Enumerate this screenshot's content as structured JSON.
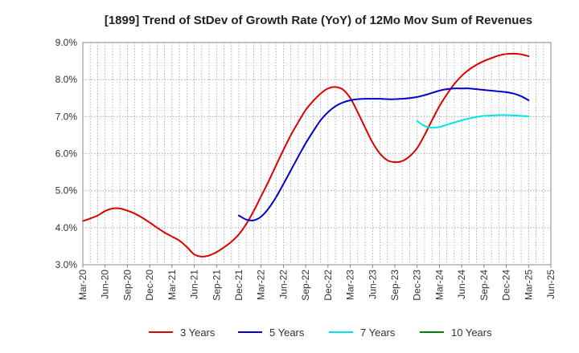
{
  "chart_data": {
    "type": "line",
    "title": "[1899]  Trend of StDev of Growth Rate (YoY) of 12Mo Mov Sum of Revenues",
    "xlabel": "",
    "ylabel": "",
    "ylim": [
      3.0,
      9.0
    ],
    "yticks": [
      3.0,
      4.0,
      5.0,
      6.0,
      7.0,
      8.0,
      9.0
    ],
    "ytick_labels": [
      "3.0%",
      "4.0%",
      "5.0%",
      "6.0%",
      "7.0%",
      "8.0%",
      "9.0%"
    ],
    "x_range_months": [
      0,
      63
    ],
    "x_ticks": [
      {
        "m": 0,
        "label": "Mar-20"
      },
      {
        "m": 3,
        "label": "Jun-20"
      },
      {
        "m": 6,
        "label": "Sep-20"
      },
      {
        "m": 9,
        "label": "Dec-20"
      },
      {
        "m": 12,
        "label": "Mar-21"
      },
      {
        "m": 15,
        "label": "Jun-21"
      },
      {
        "m": 18,
        "label": "Sep-21"
      },
      {
        "m": 21,
        "label": "Dec-21"
      },
      {
        "m": 24,
        "label": "Mar-22"
      },
      {
        "m": 27,
        "label": "Jun-22"
      },
      {
        "m": 30,
        "label": "Sep-22"
      },
      {
        "m": 33,
        "label": "Dec-22"
      },
      {
        "m": 36,
        "label": "Mar-23"
      },
      {
        "m": 39,
        "label": "Jun-23"
      },
      {
        "m": 42,
        "label": "Sep-23"
      },
      {
        "m": 45,
        "label": "Dec-23"
      },
      {
        "m": 48,
        "label": "Mar-24"
      },
      {
        "m": 51,
        "label": "Jun-24"
      },
      {
        "m": 54,
        "label": "Sep-24"
      },
      {
        "m": 57,
        "label": "Dec-24"
      },
      {
        "m": 60,
        "label": "Mar-25"
      },
      {
        "m": 63,
        "label": "Jun-25"
      }
    ],
    "grid": true,
    "legend_position": "bottom",
    "series": [
      {
        "name": "3 Years",
        "color": "#dd0000",
        "points": [
          [
            0,
            4.18
          ],
          [
            1,
            4.25
          ],
          [
            2,
            4.33
          ],
          [
            3,
            4.45
          ],
          [
            4,
            4.52
          ],
          [
            5,
            4.52
          ],
          [
            6,
            4.46
          ],
          [
            7,
            4.38
          ],
          [
            8,
            4.27
          ],
          [
            9,
            4.14
          ],
          [
            10,
            4.0
          ],
          [
            11,
            3.87
          ],
          [
            12,
            3.76
          ],
          [
            13,
            3.65
          ],
          [
            14,
            3.48
          ],
          [
            15,
            3.28
          ],
          [
            16,
            3.22
          ],
          [
            17,
            3.25
          ],
          [
            18,
            3.34
          ],
          [
            19,
            3.47
          ],
          [
            20,
            3.62
          ],
          [
            21,
            3.82
          ],
          [
            22,
            4.1
          ],
          [
            23,
            4.45
          ],
          [
            24,
            4.85
          ],
          [
            25,
            5.25
          ],
          [
            26,
            5.68
          ],
          [
            27,
            6.1
          ],
          [
            28,
            6.5
          ],
          [
            29,
            6.85
          ],
          [
            30,
            7.18
          ],
          [
            31,
            7.42
          ],
          [
            32,
            7.62
          ],
          [
            33,
            7.76
          ],
          [
            34,
            7.8
          ],
          [
            35,
            7.73
          ],
          [
            36,
            7.5
          ],
          [
            37,
            7.12
          ],
          [
            38,
            6.7
          ],
          [
            39,
            6.3
          ],
          [
            40,
            6.0
          ],
          [
            41,
            5.82
          ],
          [
            42,
            5.77
          ],
          [
            43,
            5.8
          ],
          [
            44,
            5.93
          ],
          [
            45,
            6.15
          ],
          [
            46,
            6.5
          ],
          [
            47,
            6.9
          ],
          [
            48,
            7.28
          ],
          [
            49,
            7.6
          ],
          [
            50,
            7.88
          ],
          [
            51,
            8.1
          ],
          [
            52,
            8.27
          ],
          [
            53,
            8.4
          ],
          [
            54,
            8.5
          ],
          [
            55,
            8.58
          ],
          [
            56,
            8.65
          ],
          [
            57,
            8.69
          ],
          [
            58,
            8.7
          ],
          [
            59,
            8.68
          ],
          [
            60,
            8.63
          ]
        ]
      },
      {
        "name": "5 Years",
        "color": "#0000cc",
        "points": [
          [
            21,
            4.33
          ],
          [
            22,
            4.22
          ],
          [
            23,
            4.2
          ],
          [
            24,
            4.3
          ],
          [
            25,
            4.52
          ],
          [
            26,
            4.82
          ],
          [
            27,
            5.18
          ],
          [
            28,
            5.55
          ],
          [
            29,
            5.92
          ],
          [
            30,
            6.28
          ],
          [
            31,
            6.6
          ],
          [
            32,
            6.9
          ],
          [
            33,
            7.12
          ],
          [
            34,
            7.28
          ],
          [
            35,
            7.38
          ],
          [
            36,
            7.44
          ],
          [
            37,
            7.47
          ],
          [
            38,
            7.48
          ],
          [
            39,
            7.48
          ],
          [
            40,
            7.48
          ],
          [
            41,
            7.47
          ],
          [
            42,
            7.47
          ],
          [
            43,
            7.48
          ],
          [
            44,
            7.5
          ],
          [
            45,
            7.53
          ],
          [
            46,
            7.58
          ],
          [
            47,
            7.64
          ],
          [
            48,
            7.7
          ],
          [
            49,
            7.74
          ],
          [
            50,
            7.76
          ],
          [
            51,
            7.76
          ],
          [
            52,
            7.76
          ],
          [
            53,
            7.74
          ],
          [
            54,
            7.72
          ],
          [
            55,
            7.7
          ],
          [
            56,
            7.68
          ],
          [
            57,
            7.66
          ],
          [
            58,
            7.62
          ],
          [
            59,
            7.55
          ],
          [
            60,
            7.44
          ]
        ]
      },
      {
        "name": "7 Years",
        "color": "#00e5e5",
        "points": [
          [
            45,
            6.88
          ],
          [
            46,
            6.75
          ],
          [
            47,
            6.7
          ],
          [
            48,
            6.72
          ],
          [
            49,
            6.78
          ],
          [
            50,
            6.84
          ],
          [
            51,
            6.9
          ],
          [
            52,
            6.95
          ],
          [
            53,
            6.99
          ],
          [
            54,
            7.02
          ],
          [
            55,
            7.03
          ],
          [
            56,
            7.04
          ],
          [
            57,
            7.04
          ],
          [
            58,
            7.03
          ],
          [
            59,
            7.02
          ],
          [
            60,
            7.01
          ]
        ]
      },
      {
        "name": "10 Years",
        "color": "#008000",
        "points": []
      }
    ]
  }
}
